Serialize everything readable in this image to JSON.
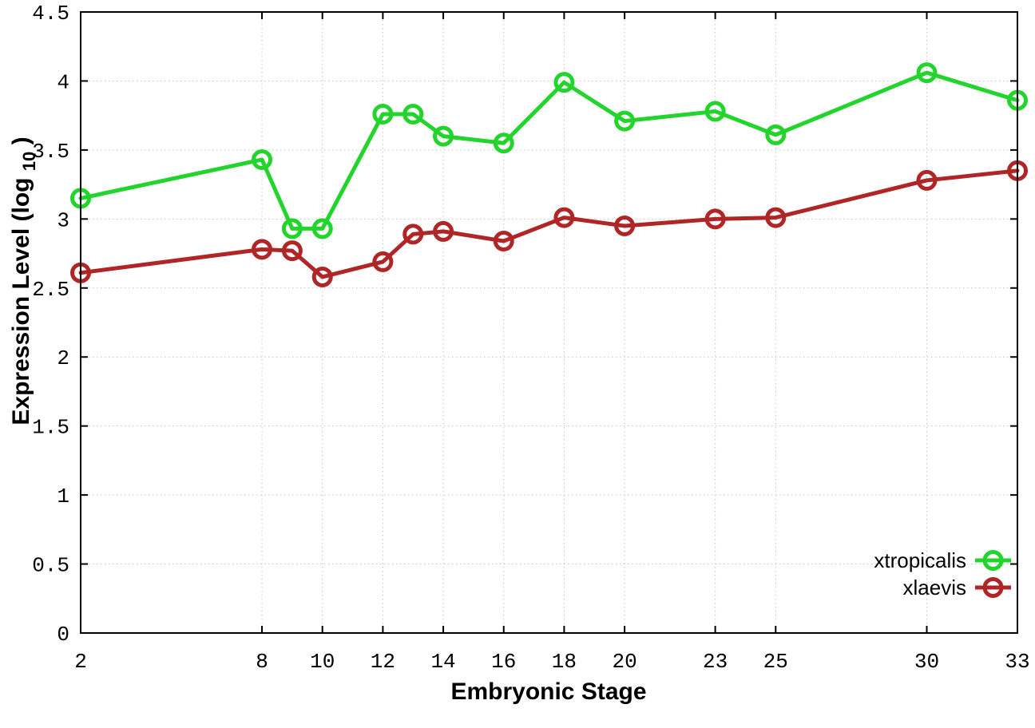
{
  "page": {
    "background_color": "#ffffff",
    "text_color": "#000000",
    "grid_color": "#c4c4c4",
    "frame_color": "#000000"
  },
  "chart_data": {
    "type": "line",
    "title": "",
    "xlabel": "Embryonic Stage",
    "ylabel": "Expression Level (log10)",
    "ylabel_prefix": "Expression Level (log",
    "ylabel_sub": "10",
    "ylabel_suffix": ")",
    "x": [
      2,
      8,
      9,
      10,
      12,
      13,
      14,
      16,
      18,
      20,
      23,
      25,
      30,
      33
    ],
    "series": [
      {
        "name": "xtropicalis",
        "color": "#22d42c",
        "values": [
          3.15,
          3.43,
          2.93,
          2.93,
          3.76,
          3.76,
          3.6,
          3.55,
          3.99,
          3.71,
          3.78,
          3.61,
          4.06,
          3.86
        ]
      },
      {
        "name": "xlaevis",
        "color": "#b02626",
        "values": [
          2.61,
          2.78,
          2.77,
          2.58,
          2.69,
          2.89,
          2.91,
          2.84,
          3.01,
          2.95,
          3.0,
          3.01,
          3.28,
          3.35
        ]
      }
    ],
    "xlim": [
      2,
      33
    ],
    "ylim": [
      0,
      4.5
    ],
    "xticks": [
      2,
      8,
      10,
      12,
      14,
      16,
      18,
      20,
      23,
      25,
      30,
      33
    ],
    "xtick_labels": [
      "2",
      "8",
      "10",
      "12",
      "14",
      "16",
      "18",
      "20",
      "23",
      "25",
      "30",
      "33"
    ],
    "yticks": [
      0,
      0.5,
      1,
      1.5,
      2,
      2.5,
      3,
      3.5,
      4,
      4.5
    ],
    "ytick_labels": [
      "0",
      "0.5",
      "1",
      "1.5",
      "2",
      "2.5",
      "3",
      "3.5",
      "4",
      "4.5"
    ],
    "grid": true,
    "grid_style": "dotted",
    "marker": "open-circle",
    "legend_position": "bottom-right",
    "legend": [
      "xtropicalis",
      "xlaevis"
    ]
  }
}
